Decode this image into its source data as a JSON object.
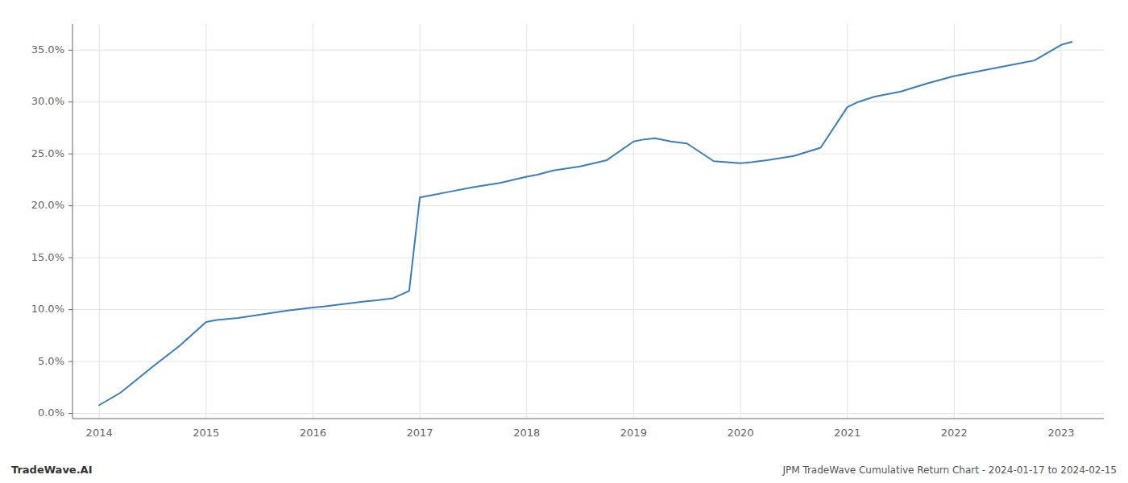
{
  "chart_data": {
    "type": "line",
    "title": "JPM TradeWave Cumulative Return Chart - 2024-01-17 to 2024-02-15",
    "annotations": [
      "TradeWave.AI"
    ],
    "x": [
      2014.0,
      2014.2,
      2014.5,
      2014.75,
      2015.0,
      2015.1,
      2015.2,
      2015.3,
      2015.5,
      2015.75,
      2016.0,
      2016.1,
      2016.25,
      2016.5,
      2016.6,
      2016.75,
      2016.9,
      2017.0,
      2017.1,
      2017.25,
      2017.5,
      2017.75,
      2018.0,
      2018.1,
      2018.25,
      2018.5,
      2018.75,
      2019.0,
      2019.1,
      2019.2,
      2019.35,
      2019.5,
      2019.75,
      2020.0,
      2020.1,
      2020.25,
      2020.5,
      2020.75,
      2021.0,
      2021.1,
      2021.25,
      2021.5,
      2021.75,
      2022.0,
      2022.25,
      2022.5,
      2022.75,
      2023.0,
      2023.1
    ],
    "values": [
      0.008,
      0.02,
      0.045,
      0.065,
      0.088,
      0.09,
      0.091,
      0.092,
      0.095,
      0.099,
      0.102,
      0.103,
      0.105,
      0.108,
      0.109,
      0.111,
      0.118,
      0.208,
      0.21,
      0.213,
      0.218,
      0.222,
      0.228,
      0.23,
      0.234,
      0.238,
      0.244,
      0.262,
      0.264,
      0.265,
      0.262,
      0.26,
      0.243,
      0.241,
      0.242,
      0.244,
      0.248,
      0.256,
      0.295,
      0.3,
      0.305,
      0.31,
      0.318,
      0.325,
      0.33,
      0.335,
      0.34,
      0.355,
      0.358
    ],
    "color": "#3a7ebf",
    "xlim": [
      2013.75,
      2023.4
    ],
    "xticks": [
      2014,
      2015,
      2016,
      2017,
      2018,
      2019,
      2020,
      2021,
      2022,
      2023
    ],
    "ylim": [
      -0.005,
      0.375
    ],
    "yticks": [
      {
        "value": 0.0,
        "label": "0.0%"
      },
      {
        "value": 0.05,
        "label": "5.0%"
      },
      {
        "value": 0.1,
        "label": "10.0%"
      },
      {
        "value": 0.15,
        "label": "15.0%"
      },
      {
        "value": 0.2,
        "label": "20.0%"
      },
      {
        "value": 0.25,
        "label": "25.0%"
      },
      {
        "value": 0.3,
        "label": "30.0%"
      },
      {
        "value": 0.35,
        "label": "35.0%"
      }
    ],
    "grid": true
  }
}
